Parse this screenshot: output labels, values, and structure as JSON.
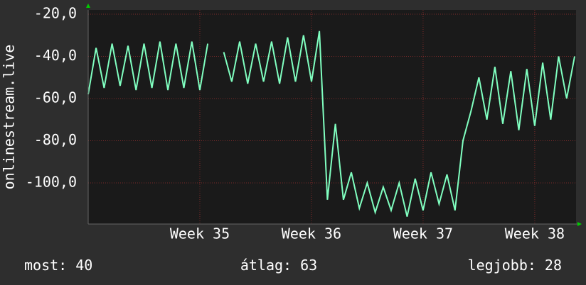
{
  "chart_data": {
    "type": "line",
    "ylabel": "onlinestream.live",
    "x": [
      34.0,
      34.071,
      34.143,
      34.214,
      34.286,
      34.357,
      34.429,
      34.5,
      34.571,
      34.643,
      34.714,
      34.786,
      34.857,
      34.929,
      35.0,
      35.071,
      35.143,
      35.214,
      35.286,
      35.357,
      35.429,
      35.5,
      35.571,
      35.643,
      35.714,
      35.786,
      35.857,
      35.929,
      36.0,
      36.071,
      36.143,
      36.214,
      36.286,
      36.357,
      36.429,
      36.5,
      36.571,
      36.643,
      36.714,
      36.786,
      36.857,
      36.929,
      37.0,
      37.071,
      37.143,
      37.214,
      37.286,
      37.357,
      37.429,
      37.5,
      37.571,
      37.643,
      37.714,
      37.786,
      37.857,
      37.929,
      38.0,
      38.071,
      38.143,
      38.214,
      38.286,
      38.357
    ],
    "series": [
      {
        "color": "#80ffc0",
        "values": [
          -58,
          -36,
          -55,
          -34,
          -54,
          -35,
          -56,
          -34,
          -55,
          -33,
          -56,
          -34,
          -55,
          -33,
          -56,
          -34,
          null,
          -38,
          -52,
          -33,
          -53,
          -34,
          -52,
          -33,
          -53,
          -31,
          -52,
          -30,
          -52,
          -28,
          -108,
          -72,
          -108,
          -95,
          -112,
          -100,
          -114,
          -102,
          -113,
          -100,
          -116,
          -98,
          -113,
          -95,
          -110,
          -96,
          -113,
          -80,
          -66,
          -50,
          -70,
          -45,
          -72,
          -47,
          -75,
          -46,
          -73,
          -43,
          -70,
          -40,
          -60,
          -40
        ]
      }
    ],
    "xlim": [
      34.0,
      38.37
    ],
    "xticks": [
      {
        "value": 35,
        "label": "Week 35"
      },
      {
        "value": 36,
        "label": "Week 36"
      },
      {
        "value": 37,
        "label": "Week 37"
      },
      {
        "value": 38,
        "label": "Week 38"
      }
    ],
    "ylim": [
      -119.5,
      -18
    ],
    "yticks": [
      {
        "value": -20,
        "label": "-20,0"
      },
      {
        "value": -40,
        "label": "-40,0"
      },
      {
        "value": -60,
        "label": "-60,0"
      },
      {
        "value": -80,
        "label": "-80,0"
      },
      {
        "value": -100,
        "label": "-100,0"
      }
    ],
    "grid": true,
    "stats": [
      {
        "label": "most:",
        "value": 40
      },
      {
        "label": "átlag:",
        "value": 63
      },
      {
        "label": "legjobb:",
        "value": 28
      }
    ]
  }
}
